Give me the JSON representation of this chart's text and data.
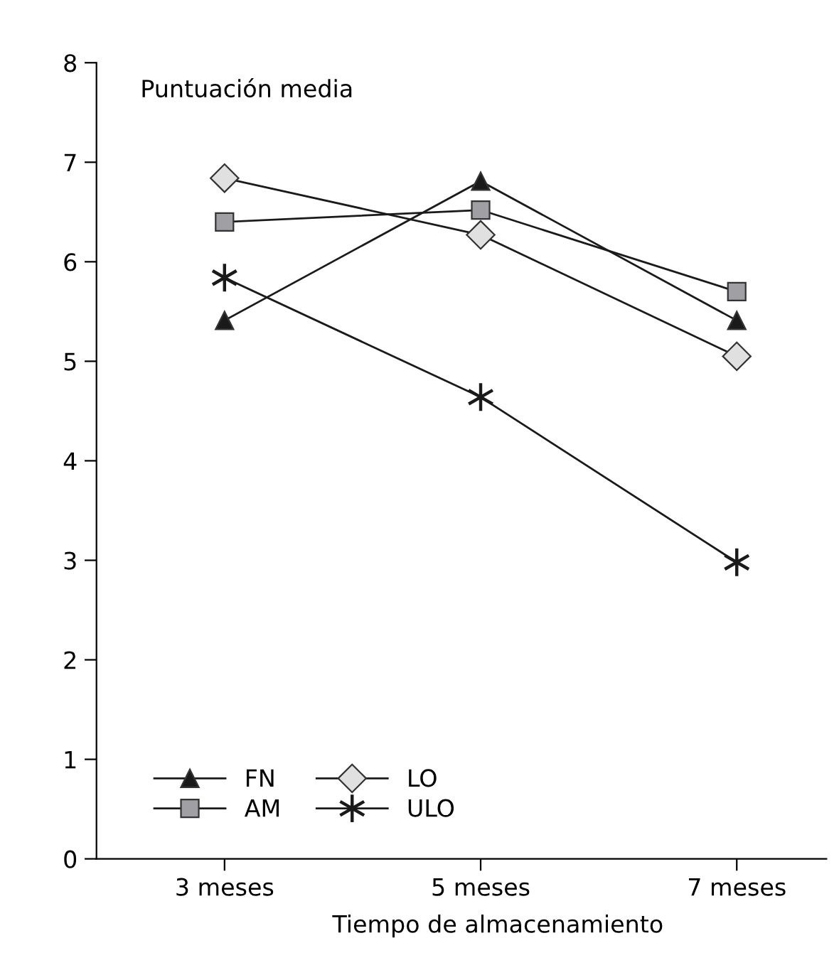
{
  "chart_data": {
    "type": "line",
    "ylabel": "Puntuación media",
    "xlabel": "Tiempo de almacenamiento",
    "categories": [
      "3 meses",
      "5 meses",
      "7 meses"
    ],
    "series": [
      {
        "name": "FN",
        "color": "#1a1a1a",
        "marker": "triangle",
        "values": [
          5.41,
          6.81,
          5.41
        ]
      },
      {
        "name": "AM",
        "color": "#a0a0a4",
        "marker": "square",
        "values": [
          6.4,
          6.52,
          5.7
        ]
      },
      {
        "name": "LO",
        "color": "#e0e0e0",
        "marker": "diamond",
        "values": [
          6.84,
          6.27,
          5.05
        ]
      },
      {
        "name": "ULO",
        "color": "#1a1a1a",
        "marker": "cross",
        "values": [
          5.84,
          4.64,
          2.98
        ]
      }
    ],
    "ylim": [
      0,
      8
    ],
    "yticks": [
      0,
      1,
      2,
      3,
      4,
      5,
      6,
      7,
      8
    ],
    "grid": false,
    "legend": "bottom left",
    "line_style": "solid"
  }
}
